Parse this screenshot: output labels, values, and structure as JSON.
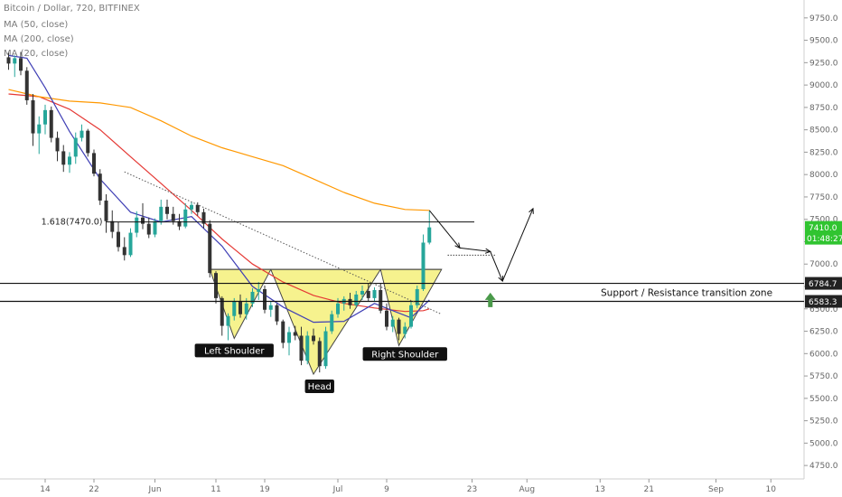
{
  "header": {
    "symbol_line": "Bitcoin / Dollar, 720, BITFINEX",
    "ma_labels": [
      "MA (50, close)",
      "MA (200, close)",
      "MA (20, close)"
    ]
  },
  "chart_data": {
    "type": "candlestick",
    "symbol": "Bitcoin / Dollar",
    "interval": "720",
    "exchange": "BITFINEX",
    "ylim": [
      4600,
      9950
    ],
    "y_ticks": [
      4750,
      5000,
      5250,
      5500,
      5750,
      6000,
      6250,
      6500,
      6750,
      7000,
      7250,
      7500,
      7750,
      8000,
      8250,
      8500,
      8750,
      9000,
      9250,
      9500,
      9750
    ],
    "y_tick_labels": [
      "4750.0",
      "5000.0",
      "5250.0",
      "5500.0",
      "5750.0",
      "6000.0",
      "6250.0",
      "6500.0",
      "6750.0",
      "7000.0",
      "7250.0",
      "7500.0",
      "7750.0",
      "8000.0",
      "8250.0",
      "8500.0",
      "8750.0",
      "9000.0",
      "9250.0",
      "9500.0",
      "9750.0"
    ],
    "x_range": [
      0,
      130
    ],
    "x_ticks": [
      {
        "label": "14",
        "x": 6
      },
      {
        "label": "22",
        "x": 14
      },
      {
        "label": "Jun",
        "x": 24
      },
      {
        "label": "11",
        "x": 34
      },
      {
        "label": "19",
        "x": 42
      },
      {
        "label": "Jul",
        "x": 54
      },
      {
        "label": "9",
        "x": 62
      },
      {
        "label": "23",
        "x": 76
      },
      {
        "label": "Aug",
        "x": 85
      },
      {
        "label": "13",
        "x": 97
      },
      {
        "label": "21",
        "x": 105
      },
      {
        "label": "Sep",
        "x": 116
      },
      {
        "label": "10",
        "x": 125
      }
    ],
    "candles": [
      [
        0,
        9310,
        9360,
        9170,
        9240
      ],
      [
        1,
        9240,
        9330,
        9090,
        9300
      ],
      [
        2,
        9300,
        9370,
        9110,
        9160
      ],
      [
        3,
        9160,
        9200,
        8780,
        8830
      ],
      [
        4,
        8830,
        8900,
        8320,
        8460
      ],
      [
        5,
        8460,
        8650,
        8230,
        8560
      ],
      [
        6,
        8560,
        8780,
        8450,
        8720
      ],
      [
        7,
        8720,
        8760,
        8360,
        8410
      ],
      [
        8,
        8410,
        8480,
        8150,
        8260
      ],
      [
        9,
        8260,
        8330,
        8030,
        8110
      ],
      [
        10,
        8110,
        8250,
        8020,
        8200
      ],
      [
        11,
        8200,
        8470,
        8120,
        8410
      ],
      [
        12,
        8410,
        8560,
        8370,
        8490
      ],
      [
        13,
        8490,
        8510,
        8200,
        8240
      ],
      [
        14,
        8240,
        8280,
        7980,
        8010
      ],
      [
        15,
        8010,
        8060,
        7660,
        7710
      ],
      [
        16,
        7710,
        7780,
        7350,
        7480
      ],
      [
        17,
        7480,
        7600,
        7290,
        7360
      ],
      [
        18,
        7360,
        7470,
        7140,
        7190
      ],
      [
        19,
        7190,
        7300,
        7040,
        7100
      ],
      [
        20,
        7100,
        7400,
        7080,
        7350
      ],
      [
        21,
        7350,
        7590,
        7300,
        7520
      ],
      [
        22,
        7520,
        7680,
        7390,
        7450
      ],
      [
        23,
        7450,
        7520,
        7290,
        7330
      ],
      [
        24,
        7330,
        7510,
        7300,
        7480
      ],
      [
        25,
        7480,
        7720,
        7440,
        7640
      ],
      [
        26,
        7640,
        7720,
        7500,
        7560
      ],
      [
        27,
        7560,
        7640,
        7440,
        7480
      ],
      [
        28,
        7480,
        7560,
        7380,
        7420
      ],
      [
        29,
        7420,
        7680,
        7400,
        7610
      ],
      [
        30,
        7610,
        7700,
        7560,
        7660
      ],
      [
        31,
        7660,
        7690,
        7540,
        7580
      ],
      [
        32,
        7580,
        7620,
        7400,
        7450
      ],
      [
        33,
        7450,
        7490,
        6850,
        6900
      ],
      [
        34,
        6900,
        6920,
        6560,
        6620
      ],
      [
        35,
        6620,
        6640,
        6200,
        6310
      ],
      [
        36,
        6310,
        6450,
        6150,
        6420
      ],
      [
        37,
        6420,
        6620,
        6370,
        6580
      ],
      [
        38,
        6580,
        6660,
        6400,
        6440
      ],
      [
        39,
        6440,
        6620,
        6380,
        6560
      ],
      [
        40,
        6560,
        6730,
        6520,
        6690
      ],
      [
        41,
        6690,
        6800,
        6600,
        6720
      ],
      [
        42,
        6720,
        6760,
        6450,
        6490
      ],
      [
        43,
        6490,
        6580,
        6410,
        6540
      ],
      [
        44,
        6540,
        6560,
        6320,
        6360
      ],
      [
        45,
        6360,
        6380,
        6060,
        6120
      ],
      [
        46,
        6120,
        6300,
        5980,
        6240
      ],
      [
        47,
        6240,
        6310,
        6150,
        6200
      ],
      [
        48,
        6200,
        6300,
        5870,
        5920
      ],
      [
        49,
        5920,
        6250,
        5880,
        6200
      ],
      [
        50,
        6200,
        6280,
        6100,
        6140
      ],
      [
        51,
        6140,
        6180,
        5790,
        5860
      ],
      [
        52,
        5860,
        6300,
        5830,
        6250
      ],
      [
        53,
        6250,
        6480,
        6220,
        6440
      ],
      [
        54,
        6440,
        6620,
        6400,
        6560
      ],
      [
        55,
        6560,
        6640,
        6480,
        6610
      ],
      [
        56,
        6610,
        6680,
        6500,
        6540
      ],
      [
        57,
        6540,
        6700,
        6520,
        6660
      ],
      [
        58,
        6660,
        6760,
        6600,
        6700
      ],
      [
        59,
        6700,
        6780,
        6580,
        6620
      ],
      [
        60,
        6620,
        6740,
        6580,
        6710
      ],
      [
        61,
        6710,
        6790,
        6450,
        6480
      ],
      [
        62,
        6480,
        6560,
        6260,
        6300
      ],
      [
        63,
        6300,
        6420,
        6240,
        6380
      ],
      [
        64,
        6380,
        6400,
        6150,
        6220
      ],
      [
        65,
        6220,
        6350,
        6170,
        6300
      ],
      [
        66,
        6300,
        6580,
        6280,
        6540
      ],
      [
        67,
        6540,
        6760,
        6510,
        6720
      ],
      [
        68,
        6720,
        7330,
        6700,
        7240
      ],
      [
        69,
        7240,
        7590,
        7220,
        7410
      ]
    ],
    "series": [
      {
        "name": "MA (50, close)",
        "color": "#e53935",
        "points": [
          [
            0,
            8900
          ],
          [
            5,
            8870
          ],
          [
            10,
            8730
          ],
          [
            15,
            8500
          ],
          [
            20,
            8200
          ],
          [
            25,
            7900
          ],
          [
            30,
            7600
          ],
          [
            35,
            7280
          ],
          [
            40,
            7000
          ],
          [
            45,
            6800
          ],
          [
            50,
            6650
          ],
          [
            55,
            6560
          ],
          [
            60,
            6510
          ],
          [
            65,
            6470
          ],
          [
            68,
            6480
          ],
          [
            69,
            6500
          ]
        ]
      },
      {
        "name": "MA (200, close)",
        "color": "#ff9800",
        "points": [
          [
            0,
            8950
          ],
          [
            5,
            8870
          ],
          [
            10,
            8820
          ],
          [
            15,
            8800
          ],
          [
            20,
            8750
          ],
          [
            25,
            8600
          ],
          [
            30,
            8430
          ],
          [
            35,
            8300
          ],
          [
            40,
            8200
          ],
          [
            45,
            8100
          ],
          [
            50,
            7950
          ],
          [
            55,
            7800
          ],
          [
            60,
            7680
          ],
          [
            65,
            7610
          ],
          [
            69,
            7600
          ]
        ]
      },
      {
        "name": "MA (20, close)",
        "color": "#3f3fb5",
        "points": [
          [
            0,
            9330
          ],
          [
            3,
            9300
          ],
          [
            6,
            8970
          ],
          [
            10,
            8480
          ],
          [
            15,
            7950
          ],
          [
            20,
            7580
          ],
          [
            25,
            7470
          ],
          [
            30,
            7530
          ],
          [
            35,
            7200
          ],
          [
            40,
            6750
          ],
          [
            45,
            6520
          ],
          [
            50,
            6350
          ],
          [
            55,
            6360
          ],
          [
            60,
            6560
          ],
          [
            63,
            6480
          ],
          [
            66,
            6400
          ],
          [
            69,
            6600
          ]
        ]
      }
    ],
    "annotations": {
      "fib_level": {
        "label": "1.618(7470.0)",
        "value": 7470
      },
      "support_resistance_label": "Support / Resistance transition zone",
      "zone_upper": {
        "value": 6784.7,
        "label": "6784.7"
      },
      "zone_lower": {
        "value": 6583.3,
        "label": "6583.3"
      },
      "last_price": {
        "value": 7410.0,
        "label": "7410.0",
        "countdown": "01:48:27"
      },
      "pattern_labels": [
        {
          "text": "Left Shoulder",
          "x": 37,
          "y": 6030
        },
        {
          "text": "Head",
          "x": 51,
          "y": 5630
        },
        {
          "text": "Right Shoulder",
          "x": 65,
          "y": 5990
        }
      ],
      "shoulder_triangles": [
        [
          [
            33,
            6940
          ],
          [
            43,
            6940
          ],
          [
            37,
            6170
          ]
        ],
        [
          [
            43,
            6940
          ],
          [
            61,
            6940
          ],
          [
            50,
            5770
          ]
        ],
        [
          [
            61,
            6940
          ],
          [
            71,
            6940
          ],
          [
            64,
            6090
          ]
        ]
      ],
      "neckline": [
        [
          33,
          6940
        ],
        [
          71,
          6940
        ]
      ],
      "trendline": [
        [
          19,
          8030
        ],
        [
          71,
          6440
        ]
      ],
      "forecast_path": [
        [
          69,
          7600
        ],
        [
          74,
          7180
        ],
        [
          79,
          7140
        ],
        [
          81,
          6810
        ],
        [
          86,
          7620
        ]
      ],
      "forecast_target": {
        "x_from": 72,
        "x_to": 80,
        "value": 7100
      },
      "up_arrow": {
        "x": 79,
        "value": 6600
      }
    },
    "colors": {
      "bull": "#26a69a",
      "bear": "#333333",
      "pattern_fill": "#f5f07a",
      "pattern_stroke": "#444444",
      "arrow": "#4a9a4a",
      "price_box": "#30c430",
      "zone_box": "#222222"
    }
  }
}
